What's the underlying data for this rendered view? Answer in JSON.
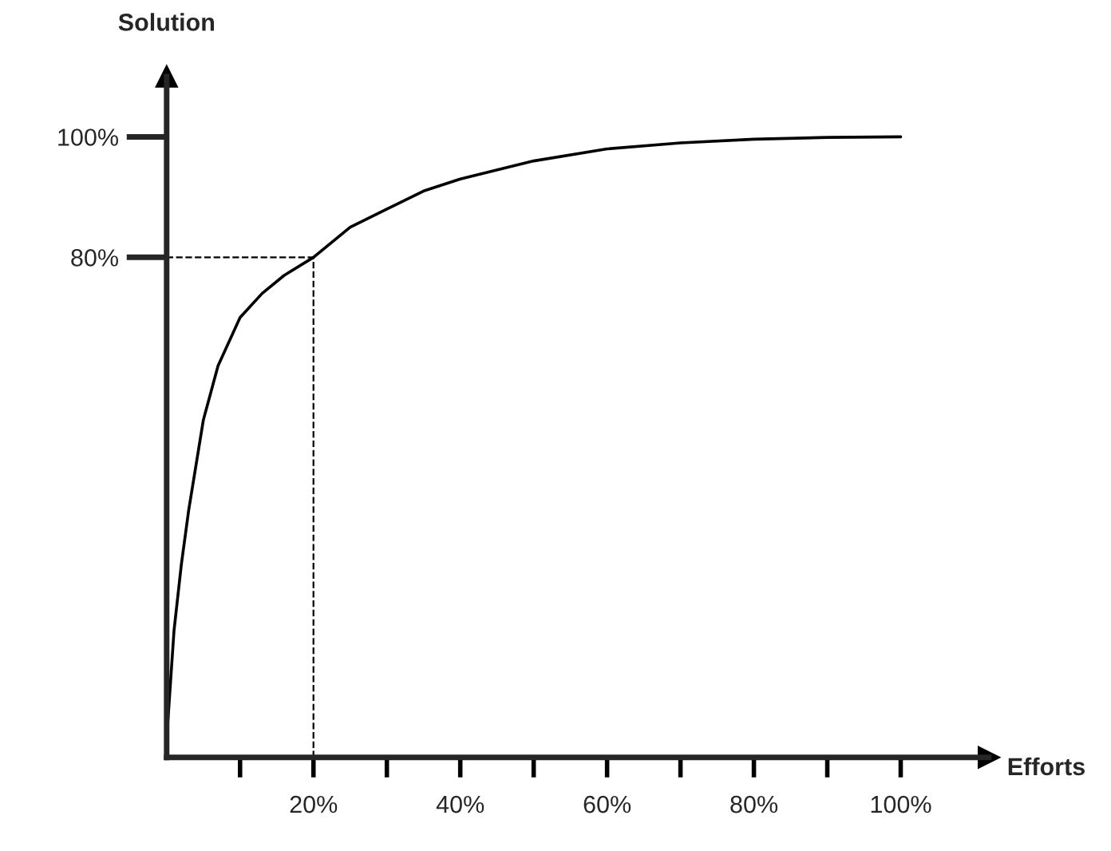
{
  "chart_data": {
    "type": "line",
    "xlabel": "Efforts",
    "ylabel": "Solution",
    "x": [
      0,
      1,
      2,
      3,
      5,
      7,
      10,
      13,
      16,
      20,
      25,
      30,
      35,
      40,
      50,
      60,
      70,
      80,
      90,
      100
    ],
    "series": [
      {
        "color": "#000000",
        "values": [
          0,
          18,
          29,
          38,
          53,
          62,
          70,
          74,
          77,
          80,
          85,
          88,
          91,
          93,
          96,
          98,
          99,
          99.6,
          99.9,
          100
        ]
      }
    ],
    "xlim": [
      0,
      112
    ],
    "ylim": [
      -3,
      110
    ],
    "xticks": [
      {
        "value": 10,
        "label": null
      },
      {
        "value": 20,
        "label": "20%"
      },
      {
        "value": 30,
        "label": null
      },
      {
        "value": 40,
        "label": "40%"
      },
      {
        "value": 50,
        "label": null
      },
      {
        "value": 60,
        "label": "60%"
      },
      {
        "value": 70,
        "label": null
      },
      {
        "value": 80,
        "label": "80%"
      },
      {
        "value": 90,
        "label": null
      },
      {
        "value": 100,
        "label": "100%"
      }
    ],
    "yticks": [
      {
        "value": 80,
        "label": "80%"
      },
      {
        "value": 100,
        "label": "100%"
      }
    ],
    "ref_lines": [
      {
        "axis": "x",
        "value": 20,
        "line_style": "dashed",
        "color": "#000000"
      },
      {
        "axis": "y",
        "value": 80,
        "line_style": "dashed",
        "color": "#000000"
      }
    ],
    "grid": false,
    "line_style": "solid",
    "marker": "none"
  }
}
